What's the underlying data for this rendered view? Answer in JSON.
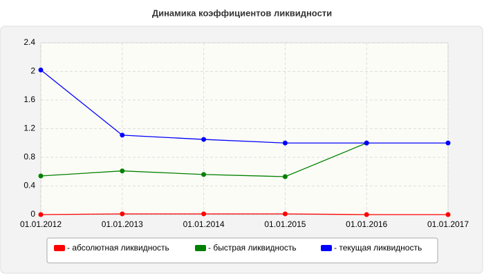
{
  "chart_data": {
    "type": "line",
    "title": "Динамика коэффициентов ликвидности",
    "categories": [
      "01.01.2012",
      "01.01.2013",
      "01.01.2014",
      "01.01.2015",
      "01.01.2016",
      "01.01.2017"
    ],
    "series": [
      {
        "name": "- абсолютная ликвидность",
        "color": "#ff0000",
        "values": [
          0,
          0.01,
          0.01,
          0.01,
          0,
          0
        ]
      },
      {
        "name": "- быстрая ликвидность",
        "color": "#008000",
        "values": [
          0.54,
          0.61,
          0.56,
          0.53,
          1.0,
          null
        ]
      },
      {
        "name": "- текущая ликвидность",
        "color": "#0000ff",
        "values": [
          2.02,
          1.11,
          1.05,
          1.0,
          1.0,
          1.0
        ]
      }
    ],
    "ylim": [
      0,
      2.4
    ],
    "yticks": [
      0,
      0.4,
      0.8,
      1.2,
      1.6,
      2,
      2.4
    ],
    "grid": true,
    "legend": "bottom"
  }
}
